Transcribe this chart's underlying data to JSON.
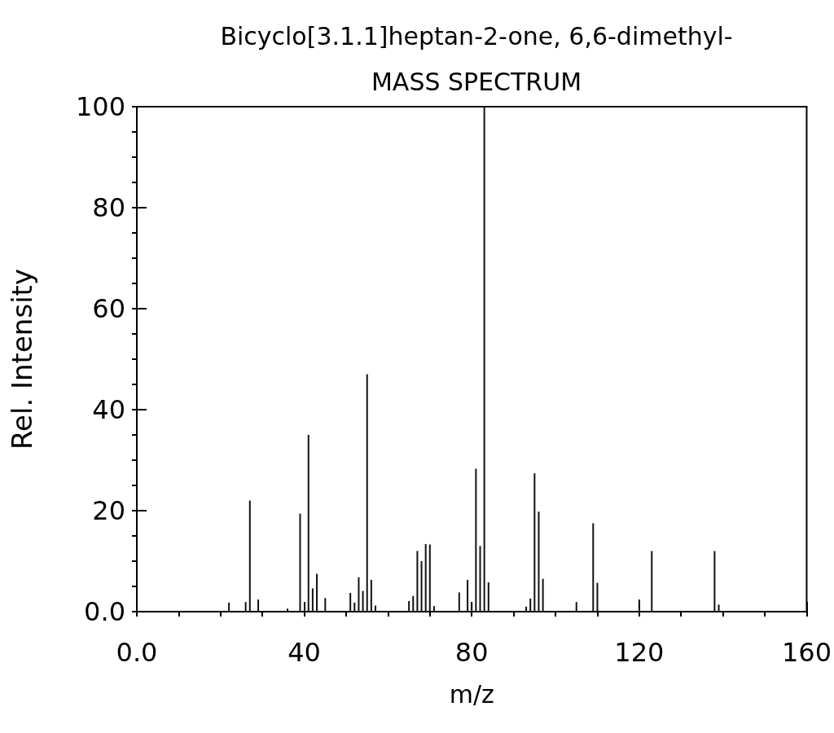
{
  "chart_data": {
    "type": "bar",
    "title": "Bicyclo[3.1.1]heptan-2-one, 6,6-dimethyl-",
    "subtitle": "MASS SPECTRUM",
    "xlabel": "m/z",
    "ylabel": "Rel. Intensity",
    "x": [
      22,
      26,
      27,
      29,
      36,
      39,
      41,
      42,
      43,
      45,
      51,
      52,
      53,
      54,
      55,
      56,
      57,
      65,
      66,
      67,
      68,
      69,
      70,
      71,
      77,
      79,
      80,
      81,
      82,
      83,
      84,
      93,
      94,
      95,
      96,
      97,
      105,
      109,
      110,
      120,
      123,
      138,
      139
    ],
    "values": [
      1.8,
      1.9,
      22,
      2.4,
      0.6,
      19.4,
      35,
      4.6,
      7.5,
      2.7,
      3.7,
      1.8,
      6.8,
      4.1,
      47,
      6.3,
      1.2,
      2.1,
      3.1,
      12,
      10,
      13.4,
      13.3,
      1.1,
      3.8,
      6.3,
      1.8,
      28.3,
      13,
      100,
      5.8,
      1,
      2.6,
      27.4,
      19.8,
      6.5,
      1.9,
      17.5,
      5.7,
      2.4,
      12,
      12,
      1.4
    ],
    "color": "#111111",
    "xlim": [
      0,
      160
    ],
    "xticks": [
      {
        "value": 0,
        "label": "0.0"
      },
      {
        "value": 10,
        "label": null
      },
      {
        "value": 20,
        "label": null
      },
      {
        "value": 30,
        "label": null
      },
      40,
      {
        "value": 50,
        "label": null
      },
      {
        "value": 60,
        "label": null
      },
      {
        "value": 70,
        "label": null
      },
      80,
      {
        "value": 90,
        "label": null
      },
      {
        "value": 100,
        "label": null
      },
      {
        "value": 110,
        "label": null
      },
      120,
      {
        "value": 130,
        "label": null
      },
      {
        "value": 140,
        "label": null
      },
      {
        "value": 150,
        "label": null
      },
      160
    ],
    "ylim": [
      0,
      100
    ],
    "yticks": [
      {
        "value": 0,
        "label": "0.0"
      },
      {
        "value": 5,
        "label": null
      },
      {
        "value": 10,
        "label": null
      },
      {
        "value": 15,
        "label": null
      },
      20,
      {
        "value": 25,
        "label": null
      },
      {
        "value": 30,
        "label": null
      },
      {
        "value": 35,
        "label": null
      },
      40,
      {
        "value": 45,
        "label": null
      },
      {
        "value": 50,
        "label": null
      },
      {
        "value": 55,
        "label": null
      },
      60,
      {
        "value": 65,
        "label": null
      },
      {
        "value": 70,
        "label": null
      },
      {
        "value": 75,
        "label": null
      },
      80,
      {
        "value": 85,
        "label": null
      },
      {
        "value": 90,
        "label": null
      },
      {
        "value": 95,
        "label": null
      },
      100
    ],
    "grid": false
  }
}
